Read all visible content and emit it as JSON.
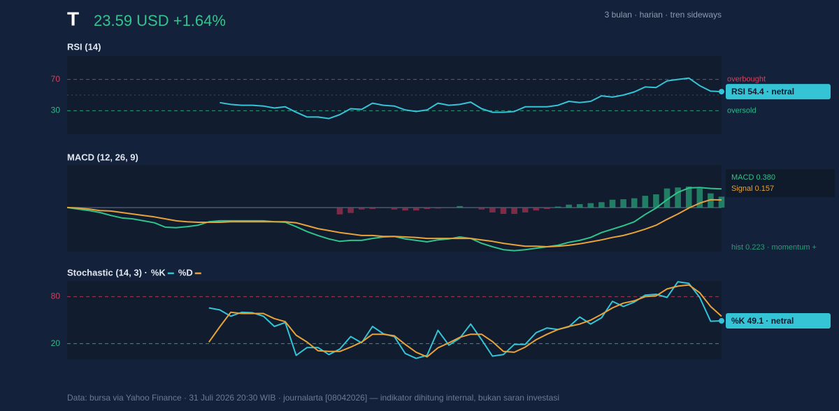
{
  "header": {
    "ticker": "T",
    "price": "23.59 USD +1.64%",
    "subtitle": "3 bulan · harian · tren sideways"
  },
  "footer": "Data: bursa via Yahoo Finance · 31 Juli 2026 20:30 WIB · journalarta [08042026] — indikator dihitung internal, bukan saran investasi",
  "chart_data": [
    {
      "type": "line",
      "title": "RSI (14)",
      "ylim": [
        0,
        100
      ],
      "yticks": [
        30,
        70
      ],
      "midline": 50,
      "levels": [
        {
          "value": 70,
          "label": "overbought",
          "color": "#d0435f"
        },
        {
          "value": 30,
          "label": "oversold",
          "color": "#2fb98a"
        }
      ],
      "badge": "RSI 54.4 · netral",
      "series": [
        {
          "color": "#35c3d6",
          "values": [
            null,
            null,
            null,
            null,
            null,
            null,
            null,
            null,
            null,
            null,
            null,
            null,
            null,
            null,
            40.4,
            38,
            37,
            37,
            36,
            33.5,
            35,
            28,
            22,
            22,
            20,
            25,
            32.6,
            31.7,
            39.6,
            37,
            36,
            31,
            29,
            31,
            39.6,
            37,
            38,
            41,
            32.6,
            28,
            28,
            29,
            35,
            35,
            35,
            37,
            42,
            40.4,
            42,
            49,
            47.4,
            50,
            54,
            60.4,
            59.6,
            68,
            70,
            71.7,
            62,
            55,
            54.4
          ]
        }
      ]
    },
    {
      "type": "combo",
      "title": "MACD (12, 26, 9)",
      "ylim": [
        -0.9,
        0.87
      ],
      "series": [
        {
          "name": "MACD 0.380",
          "type": "line",
          "color": "#2fc48c",
          "values": [
            0,
            -0.03,
            -0.06,
            -0.1,
            -0.16,
            -0.21,
            -0.23,
            -0.27,
            -0.31,
            -0.4,
            -0.41,
            -0.39,
            -0.36,
            -0.29,
            -0.27,
            -0.27,
            -0.27,
            -0.27,
            -0.27,
            -0.29,
            -0.3,
            -0.39,
            -0.49,
            -0.57,
            -0.64,
            -0.69,
            -0.67,
            -0.67,
            -0.63,
            -0.6,
            -0.59,
            -0.64,
            -0.67,
            -0.7,
            -0.66,
            -0.64,
            -0.6,
            -0.63,
            -0.73,
            -0.8,
            -0.86,
            -0.88,
            -0.86,
            -0.83,
            -0.8,
            -0.77,
            -0.71,
            -0.67,
            -0.61,
            -0.51,
            -0.44,
            -0.37,
            -0.29,
            -0.14,
            -0.01,
            0.16,
            0.31,
            0.4,
            0.41,
            0.39,
            0.38
          ]
        },
        {
          "name": "Signal 0.157",
          "type": "line",
          "color": "#e8a23a",
          "values": [
            0,
            -0.01,
            -0.03,
            -0.06,
            -0.07,
            -0.1,
            -0.13,
            -0.16,
            -0.19,
            -0.23,
            -0.27,
            -0.29,
            -0.3,
            -0.3,
            -0.3,
            -0.29,
            -0.29,
            -0.29,
            -0.29,
            -0.29,
            -0.29,
            -0.31,
            -0.37,
            -0.43,
            -0.47,
            -0.51,
            -0.54,
            -0.57,
            -0.57,
            -0.59,
            -0.59,
            -0.6,
            -0.61,
            -0.63,
            -0.63,
            -0.63,
            -0.63,
            -0.63,
            -0.66,
            -0.69,
            -0.73,
            -0.76,
            -0.79,
            -0.79,
            -0.8,
            -0.79,
            -0.77,
            -0.74,
            -0.7,
            -0.66,
            -0.61,
            -0.57,
            -0.51,
            -0.44,
            -0.36,
            -0.24,
            -0.13,
            -0.01,
            0.09,
            0.16,
            0.157
          ]
        },
        {
          "name": "hist 0.223 · momentum +",
          "type": "bar",
          "color": "#2a9d78",
          "negative_color": "#a3304f",
          "values": [
            0,
            0,
            0,
            0,
            0,
            0,
            0,
            0,
            0,
            0,
            0,
            0,
            0,
            0,
            0,
            0,
            0,
            0,
            0,
            0,
            0,
            0,
            0,
            0,
            0,
            -0.14,
            -0.11,
            -0.04,
            -0.03,
            0,
            -0.04,
            -0.06,
            -0.06,
            -0.03,
            -0.02,
            0,
            0.03,
            0,
            -0.04,
            -0.1,
            -0.13,
            -0.13,
            -0.1,
            -0.06,
            -0.03,
            0.02,
            0.06,
            0.07,
            0.09,
            0.11,
            0.16,
            0.17,
            0.19,
            0.24,
            0.27,
            0.39,
            0.41,
            0.43,
            0.39,
            0.29,
            0.223
          ]
        }
      ]
    },
    {
      "type": "line",
      "title": "Stochastic (14, 3) ·",
      "ylim": [
        0,
        100
      ],
      "yticks": [
        20,
        80
      ],
      "levels": [
        {
          "value": 80,
          "color": "#d0435f"
        },
        {
          "value": 20,
          "color": "#2fb98a"
        }
      ],
      "badge": "%K 49.1 · netral",
      "series": [
        {
          "name": "%K",
          "color": "#35c3d6",
          "values": [
            null,
            null,
            null,
            null,
            null,
            null,
            null,
            null,
            null,
            null,
            null,
            null,
            null,
            65.6,
            63,
            55,
            60,
            59.5,
            55,
            42,
            47,
            5,
            15,
            15,
            6,
            13,
            29,
            21,
            42,
            32.5,
            29,
            7.4,
            1.2,
            5,
            37,
            18,
            27,
            45,
            25,
            4,
            6,
            19,
            19,
            34,
            40,
            38,
            41.5,
            54,
            45,
            53,
            74,
            67.4,
            73,
            82,
            83,
            79,
            99,
            97,
            79,
            48.6,
            49.1
          ]
        },
        {
          "name": "%D",
          "color": "#e8a23a",
          "values": [
            null,
            null,
            null,
            null,
            null,
            null,
            null,
            null,
            null,
            null,
            null,
            null,
            null,
            22,
            41.5,
            60,
            58.5,
            58.5,
            58.5,
            52,
            48,
            30.7,
            22,
            11,
            10,
            10,
            15.5,
            22,
            32,
            32,
            30,
            19,
            9,
            3,
            14.6,
            21,
            28,
            32,
            32,
            22.6,
            10,
            9,
            15.5,
            25,
            32,
            38,
            42,
            45,
            50,
            57.5,
            65.6,
            71.7,
            74.6,
            80,
            81,
            89.8,
            93.4,
            95,
            85,
            67.4,
            54.9
          ]
        }
      ]
    }
  ]
}
